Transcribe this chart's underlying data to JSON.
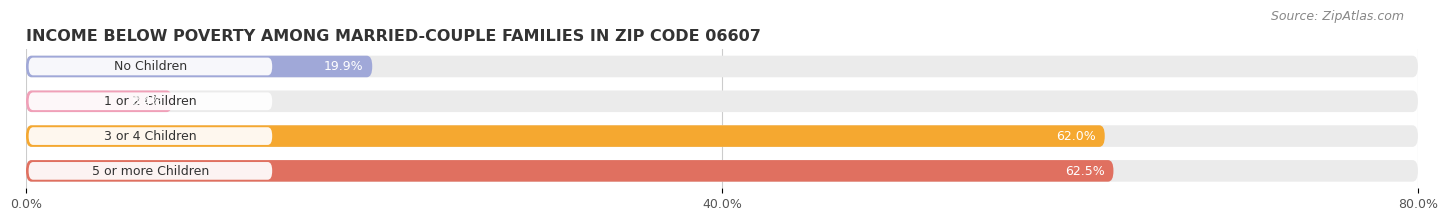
{
  "title": "INCOME BELOW POVERTY AMONG MARRIED-COUPLE FAMILIES IN ZIP CODE 06607",
  "source": "Source: ZipAtlas.com",
  "categories": [
    "No Children",
    "1 or 2 Children",
    "3 or 4 Children",
    "5 or more Children"
  ],
  "values": [
    19.9,
    8.4,
    62.0,
    62.5
  ],
  "value_labels": [
    "19.9%",
    "8.4%",
    "62.0%",
    "62.5%"
  ],
  "bar_colors": [
    "#a0a8d8",
    "#f0a0b8",
    "#f5a830",
    "#e07060"
  ],
  "xlim": [
    0,
    80
  ],
  "xticks": [
    0.0,
    40.0,
    80.0
  ],
  "xticklabels": [
    "0.0%",
    "40.0%",
    "80.0%"
  ],
  "background_color": "#ffffff",
  "bar_bg_color": "#ebebeb",
  "pill_color": "#ffffff",
  "title_fontsize": 11.5,
  "label_fontsize": 9,
  "value_fontsize": 9,
  "source_fontsize": 9,
  "bar_height": 0.62,
  "bar_gap": 1.0
}
